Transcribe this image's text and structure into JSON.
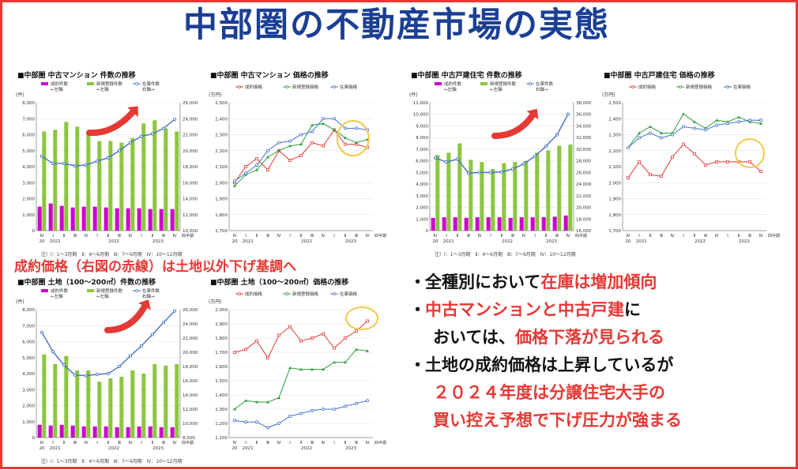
{
  "title": "中部圏の不動産市場の実態",
  "caption": "成約価格（右図の赤線）は土地以外下げ基調へ",
  "bullets": [
    {
      "parts": [
        {
          "t": "全種別において",
          "r": false
        },
        {
          "t": "在庫は増加傾向",
          "r": true
        }
      ]
    },
    {
      "parts": [
        {
          "t": "中古マンションと中古戸建",
          "r": true
        },
        {
          "t": "に",
          "r": false
        }
      ]
    },
    {
      "parts": [
        {
          "t": "おいては、",
          "r": false
        },
        {
          "t": "価格下落が見られる",
          "r": true
        }
      ]
    },
    {
      "parts": [
        {
          "t": "土地の成約価格は上昇しているが",
          "r": false
        }
      ]
    },
    {
      "parts": [
        {
          "t": "２０２４年度は分譲住宅大手の",
          "r": true
        }
      ]
    },
    {
      "parts": [
        {
          "t": "買い控え予想で下げ圧力が強まる",
          "r": true
        }
      ]
    }
  ],
  "note": "注）Ⅰ：1～3月期　Ⅱ：4～6月期　Ⅲ：7～9月期　Ⅳ：10～12月期",
  "colors": {
    "contract": "#cc00cc",
    "newlist": "#8cc63f",
    "stock": "#4472c4",
    "price_contract": "#e53935",
    "price_new": "#2e9e3e",
    "price_stock": "#4472c4",
    "highlight": "#f2c94c",
    "arrow": "#e53935"
  },
  "quarters": [
    "Ⅳ",
    "Ⅰ",
    "Ⅱ",
    "Ⅲ",
    "Ⅳ",
    "Ⅰ",
    "Ⅱ",
    "Ⅲ",
    "Ⅳ",
    "Ⅰ",
    "Ⅱ",
    "Ⅲ",
    "Ⅳ"
  ],
  "quarter_suffix": "四半期",
  "years": [
    {
      "label": "20",
      "i": 0
    },
    {
      "label": "2021",
      "i": 1.2
    },
    {
      "label": "2022",
      "i": 6.5
    },
    {
      "label": "2023",
      "i": 10.5
    }
  ],
  "chart_data": [
    {
      "type": "bar",
      "title": "■中部圏 中古マンション 件数の推移",
      "ylabel": "(件)",
      "y2label": "",
      "legend": [
        "成約件数\n←左軸",
        "新規登録件数\n←左軸",
        "在庫件数\n右軸→"
      ],
      "ylim": [
        0,
        8000
      ],
      "yticks": [
        0,
        1000,
        2000,
        3000,
        4000,
        5000,
        6000,
        7000,
        8000
      ],
      "y2lim": [
        10000,
        26000
      ],
      "y2ticks": [
        10000,
        12000,
        14000,
        16000,
        18000,
        20000,
        22000,
        24000,
        26000
      ],
      "series": [
        {
          "name": "成約件数",
          "kind": "bar",
          "axis": "left",
          "values": [
            1500,
            1700,
            1550,
            1450,
            1500,
            1500,
            1450,
            1400,
            1400,
            1400,
            1350,
            1350,
            1350
          ]
        },
        {
          "name": "新規登録件数",
          "kind": "bar",
          "axis": "left",
          "values": [
            6200,
            6300,
            6800,
            6500,
            6100,
            5600,
            5600,
            5500,
            5800,
            6700,
            6900,
            6400,
            6200
          ]
        },
        {
          "name": "在庫件数",
          "kind": "line",
          "axis": "right",
          "values": [
            19300,
            18400,
            18400,
            18100,
            18200,
            18700,
            19100,
            20000,
            21000,
            21800,
            22100,
            22800,
            23900
          ]
        }
      ]
    },
    {
      "type": "line",
      "title": "■中部圏 中古マンション 価格の推移",
      "ylabel": "(万円)",
      "legend": [
        "成約価格",
        "新規登録価格",
        "在庫価格"
      ],
      "ylim": [
        1700,
        2500
      ],
      "yticks": [
        1700,
        1800,
        1900,
        2000,
        2100,
        2200,
        2300,
        2400,
        2500
      ],
      "series": [
        {
          "name": "成約価格",
          "values": [
            2000,
            2100,
            2150,
            2080,
            2200,
            2140,
            2170,
            2250,
            2230,
            2330,
            2240,
            2240,
            2220
          ]
        },
        {
          "name": "新規登録価格",
          "values": [
            1980,
            2050,
            2080,
            2160,
            2200,
            2230,
            2240,
            2360,
            2370,
            2330,
            2280,
            2250,
            2270
          ]
        },
        {
          "name": "在庫価格",
          "values": [
            2010,
            2060,
            2110,
            2200,
            2250,
            2260,
            2300,
            2320,
            2400,
            2400,
            2340,
            2340,
            2330
          ]
        }
      ]
    },
    {
      "type": "bar",
      "title": "■中部圏 中古戸建住宅 件数の推移",
      "ylabel": "(件)",
      "legend": [
        "成約件数\n←左軸",
        "新規登録件数\n←左軸",
        "在庫件数\n右軸→"
      ],
      "ylim": [
        0,
        11000
      ],
      "yticks": [
        0,
        1000,
        2000,
        3000,
        4000,
        5000,
        6000,
        7000,
        8000,
        9000,
        10000,
        11000
      ],
      "y2lim": [
        16000,
        38000
      ],
      "y2ticks": [
        16000,
        18000,
        20000,
        22000,
        24000,
        26000,
        28000,
        30000,
        32000,
        34000,
        36000,
        38000
      ],
      "series": [
        {
          "name": "成約件数",
          "kind": "bar",
          "axis": "left",
          "values": [
            1100,
            1150,
            1150,
            1100,
            1150,
            1150,
            1150,
            1100,
            1150,
            1150,
            1150,
            1200,
            1300
          ]
        },
        {
          "name": "新規登録件数",
          "kind": "bar",
          "axis": "left",
          "values": [
            6500,
            6700,
            7500,
            6100,
            5900,
            5300,
            5800,
            5900,
            6000,
            6700,
            6900,
            7300,
            7400
          ]
        },
        {
          "name": "在庫件数",
          "kind": "line",
          "axis": "right",
          "values": [
            28500,
            27800,
            28300,
            25900,
            26000,
            26000,
            26100,
            26600,
            27500,
            28800,
            30500,
            32500,
            36000
          ]
        }
      ]
    },
    {
      "type": "line",
      "title": "■中部圏 中古戸建住宅 価格の推移",
      "ylabel": "(万円)",
      "legend": [
        "成約価格",
        "新規登録価格",
        "在庫価格"
      ],
      "ylim": [
        1700,
        2500
      ],
      "yticks": [
        1700,
        1800,
        1900,
        2000,
        2100,
        2200,
        2300,
        2400,
        2500
      ],
      "series": [
        {
          "name": "成約価格",
          "values": [
            2030,
            2130,
            2050,
            2040,
            2160,
            2240,
            2180,
            2110,
            2130,
            2130,
            2130,
            2130,
            2070
          ]
        },
        {
          "name": "新規登録価格",
          "values": [
            2220,
            2310,
            2350,
            2310,
            2310,
            2430,
            2380,
            2340,
            2390,
            2380,
            2410,
            2380,
            2370
          ]
        },
        {
          "name": "在庫価格",
          "values": [
            2220,
            2280,
            2310,
            2280,
            2300,
            2350,
            2340,
            2330,
            2360,
            2370,
            2380,
            2390,
            2390
          ]
        }
      ]
    },
    {
      "type": "bar",
      "title": "■中部圏 土地（100～200㎡）件数の推移",
      "ylabel": "(件)",
      "legend": [
        "成約件数\n←左軸",
        "新規登録件数\n←左軸",
        "在庫件数\n右軸→"
      ],
      "ylim": [
        0,
        8000
      ],
      "yticks": [
        0,
        1000,
        2000,
        3000,
        4000,
        5000,
        6000,
        7000,
        8000
      ],
      "y2lim": [
        8000,
        26000
      ],
      "y2ticks": [
        8000,
        10000,
        12000,
        14000,
        16000,
        18000,
        20000,
        22000,
        24000,
        26000
      ],
      "series": [
        {
          "name": "成約件数",
          "kind": "bar",
          "axis": "left",
          "values": [
            800,
            750,
            800,
            750,
            700,
            700,
            700,
            650,
            650,
            700,
            700,
            650,
            650
          ]
        },
        {
          "name": "新規登録件数",
          "kind": "bar",
          "axis": "left",
          "values": [
            5200,
            4600,
            5100,
            4200,
            4200,
            3500,
            3700,
            3800,
            4200,
            4000,
            4600,
            4500,
            4600
          ]
        },
        {
          "name": "在庫件数",
          "kind": "line",
          "axis": "right",
          "values": [
            22800,
            20100,
            18200,
            16800,
            16700,
            16900,
            17000,
            18000,
            19500,
            20900,
            22500,
            24200,
            25800
          ]
        }
      ]
    },
    {
      "type": "line",
      "title": "■中部圏 土地（100～200㎡）価格の推移",
      "ylabel": "(万円)",
      "legend": [
        "成約価格",
        "新規登録価格",
        "在庫価格"
      ],
      "ylim": [
        1100,
        2000
      ],
      "yticks": [
        1100,
        1200,
        1300,
        1400,
        1500,
        1600,
        1700,
        1800,
        1900,
        2000
      ],
      "series": [
        {
          "name": "成約価格",
          "values": [
            1700,
            1720,
            1780,
            1660,
            1820,
            1880,
            1780,
            1800,
            1830,
            1730,
            1800,
            1850,
            1920
          ]
        },
        {
          "name": "新規登録価格",
          "values": [
            1300,
            1360,
            1350,
            1350,
            1380,
            1590,
            1580,
            1580,
            1580,
            1630,
            1630,
            1720,
            1710
          ]
        },
        {
          "name": "在庫価格",
          "values": [
            1220,
            1210,
            1210,
            1170,
            1200,
            1250,
            1270,
            1290,
            1300,
            1300,
            1320,
            1340,
            1360
          ]
        }
      ]
    }
  ]
}
